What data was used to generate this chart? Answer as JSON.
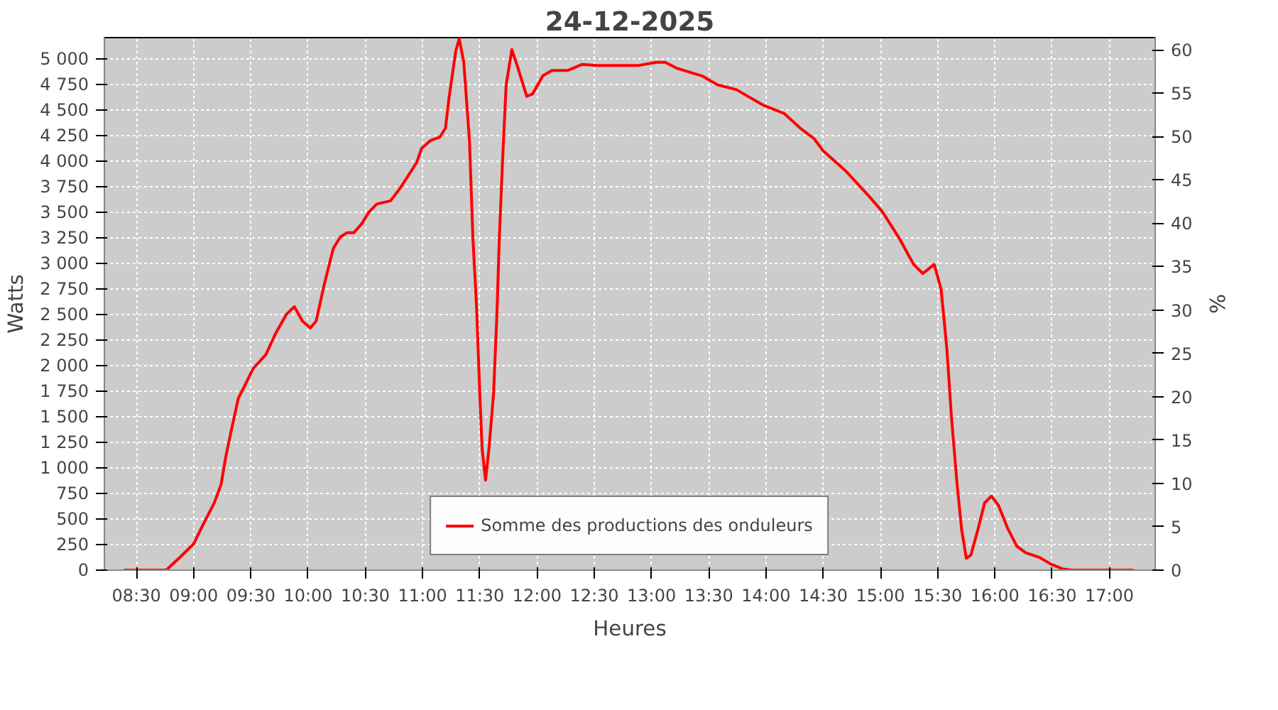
{
  "chart_data": {
    "type": "line",
    "title": "24-12-2025",
    "xlabel": "Heures",
    "ylabel": "Watts",
    "y2label": "%",
    "series": [
      {
        "name": "Somme des productions des onduleurs",
        "color": "#ff0000",
        "x": [
          8.39,
          8.76,
          8.88,
          9.0,
          9.08,
          9.18,
          9.24,
          9.28,
          9.33,
          9.39,
          9.45,
          9.52,
          9.63,
          9.72,
          9.81,
          9.88,
          9.95,
          10.02,
          10.07,
          10.14,
          10.22,
          10.28,
          10.34,
          10.4,
          10.47,
          10.53,
          10.6,
          10.72,
          10.81,
          10.93,
          10.95,
          10.99,
          11.07,
          11.15,
          11.2,
          11.23,
          11.29,
          11.32,
          11.36,
          11.41,
          11.44,
          11.47,
          11.5,
          11.52,
          11.55,
          11.58,
          11.62,
          11.65,
          11.67,
          11.7,
          11.73,
          11.78,
          11.83,
          11.91,
          11.96,
          12.05,
          12.13,
          12.27,
          12.39,
          12.53,
          12.89,
          13.04,
          13.12,
          13.22,
          13.44,
          13.58,
          13.74,
          13.98,
          14.16,
          14.3,
          14.42,
          14.5,
          14.7,
          14.9,
          15.02,
          15.17,
          15.29,
          15.37,
          15.47,
          15.53,
          15.58,
          15.62,
          15.67,
          15.71,
          15.75,
          15.79,
          15.85,
          15.91,
          15.97,
          16.03,
          16.11,
          16.19,
          16.27,
          16.39,
          16.49,
          16.59,
          16.67,
          17.21
        ],
        "values": [
          0,
          0,
          125,
          257,
          440,
          657,
          840,
          1107,
          1373,
          1680,
          1813,
          1973,
          2107,
          2324,
          2502,
          2578,
          2436,
          2369,
          2436,
          2791,
          3147,
          3258,
          3302,
          3302,
          3391,
          3502,
          3582,
          3613,
          3747,
          3956,
          3991,
          4124,
          4204,
          4236,
          4324,
          4613,
          5080,
          5200,
          4969,
          4191,
          3236,
          2613,
          1724,
          1191,
          880,
          1191,
          1724,
          2524,
          3236,
          4036,
          4747,
          5093,
          4924,
          4636,
          4658,
          4836,
          4889,
          4889,
          4947,
          4938,
          4938,
          4969,
          4969,
          4911,
          4836,
          4747,
          4702,
          4547,
          4467,
          4324,
          4222,
          4102,
          3902,
          3658,
          3502,
          3236,
          2991,
          2902,
          2991,
          2747,
          2169,
          1502,
          836,
          391,
          116,
          147,
          391,
          658,
          724,
          636,
          413,
          236,
          169,
          124,
          58,
          13,
          0,
          0
        ]
      }
    ],
    "xlim": [
      8.22,
      17.4
    ],
    "xticks": [
      {
        "value": 8.5,
        "label": "08:30"
      },
      {
        "value": 9.0,
        "label": "09:00"
      },
      {
        "value": 9.5,
        "label": "09:30"
      },
      {
        "value": 10.0,
        "label": "10:00"
      },
      {
        "value": 10.5,
        "label": "10:30"
      },
      {
        "value": 11.0,
        "label": "11:00"
      },
      {
        "value": 11.5,
        "label": "11:30"
      },
      {
        "value": 12.0,
        "label": "12:00"
      },
      {
        "value": 12.5,
        "label": "12:30"
      },
      {
        "value": 13.0,
        "label": "13:00"
      },
      {
        "value": 13.5,
        "label": "13:30"
      },
      {
        "value": 14.0,
        "label": "14:00"
      },
      {
        "value": 14.5,
        "label": "14:30"
      },
      {
        "value": 15.0,
        "label": "15:00"
      },
      {
        "value": 15.5,
        "label": "15:30"
      },
      {
        "value": 16.0,
        "label": "16:00"
      },
      {
        "value": 16.5,
        "label": "16:30"
      },
      {
        "value": 17.0,
        "label": "17:00"
      }
    ],
    "ylim": [
      0,
      5210
    ],
    "yticks": [
      0,
      250,
      500,
      750,
      {
        "value": 1000,
        "label": "1 000"
      },
      {
        "value": 1250,
        "label": "1 250"
      },
      {
        "value": 1500,
        "label": "1 500"
      },
      {
        "value": 1750,
        "label": "1 750"
      },
      {
        "value": 2000,
        "label": "2 000"
      },
      {
        "value": 2250,
        "label": "2 250"
      },
      {
        "value": 2500,
        "label": "2 500"
      },
      {
        "value": 2750,
        "label": "2 750"
      },
      {
        "value": 3000,
        "label": "3 000"
      },
      {
        "value": 3250,
        "label": "3 250"
      },
      {
        "value": 3500,
        "label": "3 500"
      },
      {
        "value": 3750,
        "label": "3 750"
      },
      {
        "value": 4000,
        "label": "4 000"
      },
      {
        "value": 4250,
        "label": "4 250"
      },
      {
        "value": 4500,
        "label": "4 500"
      },
      {
        "value": 4750,
        "label": "4 750"
      },
      {
        "value": 5000,
        "label": "5 000"
      }
    ],
    "y2lim": [
      0,
      61.4
    ],
    "y2ticks": [
      0,
      5,
      10,
      15,
      20,
      25,
      30,
      35,
      40,
      45,
      50,
      55,
      60
    ],
    "grid": true,
    "legend": "bottom",
    "marker": "none",
    "line_style": "solid"
  }
}
